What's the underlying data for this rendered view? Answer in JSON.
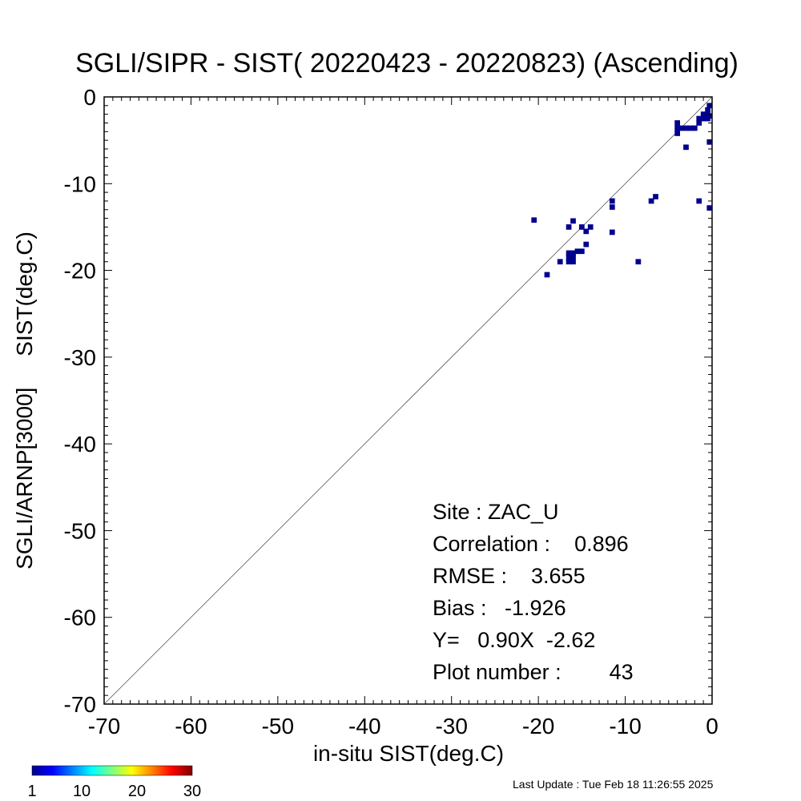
{
  "chart_data": {
    "type": "heatmap",
    "title": "SGLI/SIPR - SIST( 20220423 - 20220823) (Ascending)",
    "xlabel": "in-situ SIST(deg.C)",
    "ylabel": "SGLI/ARNP[3000]     SIST(deg.C)",
    "xlim": [
      -70,
      0
    ],
    "ylim": [
      -70,
      0
    ],
    "x_ticks": [
      "-70",
      "-60",
      "-50",
      "-40",
      "-30",
      "-20",
      "-10",
      "0"
    ],
    "y_ticks": [
      "-70",
      "-60",
      "-50",
      "-40",
      "-30",
      "-20",
      "-10",
      "0"
    ],
    "bin_size": 0.5,
    "diagonal": true,
    "grid": false,
    "point_color": "#00008f",
    "points": [
      [
        -20.5,
        -14.2
      ],
      [
        -19.0,
        -20.5
      ],
      [
        -17.5,
        -19.0
      ],
      [
        -16.5,
        -15.0
      ],
      [
        -16.5,
        -18.0
      ],
      [
        -16.5,
        -18.5
      ],
      [
        -16.5,
        -19.0
      ],
      [
        -16.0,
        -14.3
      ],
      [
        -16.0,
        -18.0
      ],
      [
        -16.0,
        -18.5
      ],
      [
        -16.0,
        -19.0
      ],
      [
        -15.5,
        -17.8
      ],
      [
        -15.0,
        -15.0
      ],
      [
        -15.0,
        -17.8
      ],
      [
        -14.5,
        -15.5
      ],
      [
        -14.5,
        -17.0
      ],
      [
        -14.0,
        -15.0
      ],
      [
        -11.5,
        -12.0
      ],
      [
        -11.5,
        -12.7
      ],
      [
        -11.5,
        -15.6
      ],
      [
        -8.5,
        -19.0
      ],
      [
        -7.0,
        -12.0
      ],
      [
        -6.5,
        -11.5
      ],
      [
        -4.0,
        -3.0
      ],
      [
        -4.0,
        -3.6
      ],
      [
        -4.0,
        -4.2
      ],
      [
        -3.5,
        -3.6
      ],
      [
        -3.0,
        -3.6
      ],
      [
        -3.0,
        -5.8
      ],
      [
        -2.5,
        -3.6
      ],
      [
        -2.0,
        -3.6
      ],
      [
        -1.5,
        -2.5
      ],
      [
        -1.5,
        -3.0
      ],
      [
        -1.5,
        -12.0
      ],
      [
        -1.0,
        -2.0
      ],
      [
        -1.0,
        -2.5
      ],
      [
        -0.5,
        -2.0
      ],
      [
        -0.5,
        -2.5
      ],
      [
        -0.5,
        -1.5
      ],
      [
        -0.3,
        -1.0
      ],
      [
        -0.3,
        -2.2
      ],
      [
        -0.3,
        -5.2
      ],
      [
        -0.3,
        -12.8
      ]
    ],
    "stats": {
      "site": "Site : ZAC_U",
      "correlation": "Correlation :    0.896",
      "rmse": "RMSE :    3.655",
      "bias": "Bias :   -1.926",
      "fit": "Y=   0.90X  -2.62",
      "plot_number": "Plot number :        43"
    },
    "colorbar": {
      "ticks": [
        "1",
        "10",
        "20",
        "30"
      ],
      "min": 1,
      "max": 30,
      "colors": [
        "#00008f",
        "#0000ff",
        "#0080ff",
        "#00ffff",
        "#80ff80",
        "#ffff00",
        "#ff8000",
        "#ff0000",
        "#800000"
      ]
    }
  },
  "footer": {
    "last_update": "Last Update : Tue Feb 18 11:26:55 2025"
  }
}
